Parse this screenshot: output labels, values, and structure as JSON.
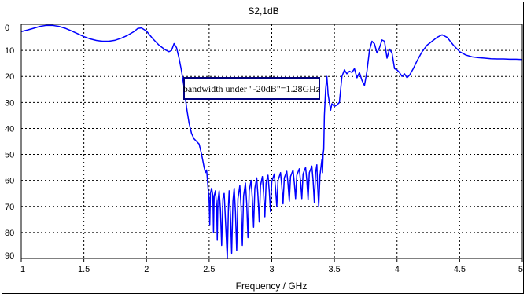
{
  "chart_data": {
    "type": "line",
    "title": "S2,1dB",
    "xlabel": "Frequency / GHz",
    "ylabel": "",
    "xlim": [
      1,
      5
    ],
    "ylim": [
      0,
      90
    ],
    "y_inverted": true,
    "grid": true,
    "grid_style": "dotted",
    "series_color": "#0000ff",
    "x_ticks": [
      "1",
      "1.5",
      "2",
      "2.5",
      "3",
      "3.5",
      "4",
      "4.5",
      "5"
    ],
    "y_ticks": [
      "0",
      "10",
      "20",
      "30",
      "40",
      "50",
      "60",
      "70",
      "80",
      "90"
    ],
    "annotation": {
      "text": "bandwidth under \"-20dB\"=1.28GHz",
      "x": 2.3,
      "y": 25
    },
    "series": [
      {
        "values": [
          [
            1.0,
            2.8
          ],
          [
            1.05,
            2.2
          ],
          [
            1.1,
            1.5
          ],
          [
            1.15,
            0.8
          ],
          [
            1.2,
            0.4
          ],
          [
            1.25,
            0.4
          ],
          [
            1.3,
            0.8
          ],
          [
            1.35,
            1.5
          ],
          [
            1.4,
            2.5
          ],
          [
            1.45,
            3.6
          ],
          [
            1.5,
            4.7
          ],
          [
            1.55,
            5.6
          ],
          [
            1.6,
            6.2
          ],
          [
            1.65,
            6.5
          ],
          [
            1.7,
            6.5
          ],
          [
            1.75,
            6.1
          ],
          [
            1.8,
            5.3
          ],
          [
            1.85,
            4.2
          ],
          [
            1.9,
            2.8
          ],
          [
            1.93,
            1.6
          ],
          [
            1.96,
            1.4
          ],
          [
            2.0,
            2.6
          ],
          [
            2.05,
            5.5
          ],
          [
            2.1,
            8.0
          ],
          [
            2.15,
            9.8
          ],
          [
            2.18,
            10.5
          ],
          [
            2.2,
            10.0
          ],
          [
            2.22,
            7.4
          ],
          [
            2.24,
            9.0
          ],
          [
            2.26,
            13.0
          ],
          [
            2.28,
            18.0
          ],
          [
            2.3,
            24.0
          ],
          [
            2.32,
            32.0
          ],
          [
            2.34,
            38.0
          ],
          [
            2.36,
            42.0
          ],
          [
            2.38,
            44.0
          ],
          [
            2.4,
            45.0
          ],
          [
            2.42,
            46.0
          ],
          [
            2.44,
            50.0
          ],
          [
            2.46,
            55.0
          ],
          [
            2.47,
            57.0
          ],
          [
            2.48,
            56.0
          ],
          [
            2.49,
            62.0
          ],
          [
            2.5,
            68.0
          ],
          [
            2.505,
            77.0
          ],
          [
            2.51,
            65.0
          ],
          [
            2.52,
            63.0
          ],
          [
            2.53,
            66.0
          ],
          [
            2.535,
            80.0
          ],
          [
            2.54,
            66.0
          ],
          [
            2.55,
            64.0
          ],
          [
            2.56,
            70.0
          ],
          [
            2.565,
            83.0
          ],
          [
            2.57,
            68.0
          ],
          [
            2.58,
            64.0
          ],
          [
            2.59,
            71.0
          ],
          [
            2.6,
            85.0
          ],
          [
            2.61,
            67.0
          ],
          [
            2.62,
            65.0
          ],
          [
            2.63,
            75.0
          ],
          [
            2.645,
            90.0
          ],
          [
            2.655,
            69.0
          ],
          [
            2.66,
            64.0
          ],
          [
            2.67,
            73.0
          ],
          [
            2.68,
            88.0
          ],
          [
            2.69,
            68.0
          ],
          [
            2.7,
            63.0
          ],
          [
            2.71,
            72.0
          ],
          [
            2.72,
            87.0
          ],
          [
            2.73,
            67.0
          ],
          [
            2.745,
            62.0
          ],
          [
            2.755,
            70.0
          ],
          [
            2.765,
            85.0
          ],
          [
            2.775,
            66.0
          ],
          [
            2.79,
            61.0
          ],
          [
            2.8,
            69.0
          ],
          [
            2.81,
            82.0
          ],
          [
            2.82,
            64.0
          ],
          [
            2.835,
            60.0
          ],
          [
            2.845,
            67.0
          ],
          [
            2.855,
            78.0
          ],
          [
            2.865,
            63.0
          ],
          [
            2.88,
            59.0
          ],
          [
            2.89,
            66.0
          ],
          [
            2.9,
            76.0
          ],
          [
            2.91,
            62.0
          ],
          [
            2.925,
            58.5
          ],
          [
            2.935,
            65.0
          ],
          [
            2.945,
            74.0
          ],
          [
            2.955,
            61.0
          ],
          [
            2.97,
            58.0
          ],
          [
            2.98,
            64.0
          ],
          [
            2.99,
            72.0
          ],
          [
            3.0,
            60.5
          ],
          [
            3.02,
            57.5
          ],
          [
            3.03,
            63.0
          ],
          [
            3.04,
            70.0
          ],
          [
            3.05,
            60.0
          ],
          [
            3.07,
            57.0
          ],
          [
            3.08,
            62.0
          ],
          [
            3.09,
            69.0
          ],
          [
            3.1,
            59.0
          ],
          [
            3.12,
            56.5
          ],
          [
            3.13,
            61.5
          ],
          [
            3.14,
            68.0
          ],
          [
            3.15,
            58.5
          ],
          [
            3.17,
            56.0
          ],
          [
            3.18,
            61.0
          ],
          [
            3.19,
            67.0
          ],
          [
            3.2,
            58.0
          ],
          [
            3.22,
            55.5
          ],
          [
            3.23,
            60.5
          ],
          [
            3.24,
            67.0
          ],
          [
            3.25,
            57.5
          ],
          [
            3.27,
            55.0
          ],
          [
            3.28,
            60.0
          ],
          [
            3.29,
            67.5
          ],
          [
            3.3,
            57.0
          ],
          [
            3.32,
            54.5
          ],
          [
            3.33,
            60.0
          ],
          [
            3.34,
            68.5
          ],
          [
            3.35,
            57.0
          ],
          [
            3.36,
            54.0
          ],
          [
            3.365,
            61.0
          ],
          [
            3.375,
            70.0
          ],
          [
            3.385,
            58.0
          ],
          [
            3.395,
            54.0
          ],
          [
            3.4,
            52.0
          ],
          [
            3.405,
            57.0
          ],
          [
            3.41,
            50.0
          ],
          [
            3.415,
            48.0
          ],
          [
            3.42,
            35.0
          ],
          [
            3.43,
            25.0
          ],
          [
            3.44,
            20.0
          ],
          [
            3.45,
            27.0
          ],
          [
            3.46,
            30.0
          ],
          [
            3.47,
            33.0
          ],
          [
            3.48,
            30.5
          ],
          [
            3.5,
            31.5
          ],
          [
            3.52,
            31.0
          ],
          [
            3.54,
            30.0
          ],
          [
            3.56,
            20.0
          ],
          [
            3.58,
            17.5
          ],
          [
            3.6,
            19.0
          ],
          [
            3.62,
            18.0
          ],
          [
            3.64,
            18.5
          ],
          [
            3.66,
            17.0
          ],
          [
            3.68,
            20.5
          ],
          [
            3.7,
            18.5
          ],
          [
            3.72,
            21.5
          ],
          [
            3.74,
            23.5
          ],
          [
            3.76,
            18.0
          ],
          [
            3.78,
            10.0
          ],
          [
            3.8,
            6.5
          ],
          [
            3.82,
            7.5
          ],
          [
            3.84,
            11.0
          ],
          [
            3.86,
            9.0
          ],
          [
            3.88,
            6.0
          ],
          [
            3.9,
            6.5
          ],
          [
            3.92,
            13.0
          ],
          [
            3.94,
            9.5
          ],
          [
            3.96,
            11.0
          ],
          [
            3.98,
            17.0
          ],
          [
            4.0,
            17.5
          ],
          [
            4.02,
            18.5
          ],
          [
            4.04,
            20.0
          ],
          [
            4.06,
            19.0
          ],
          [
            4.08,
            20.5
          ],
          [
            4.1,
            19.5
          ],
          [
            4.13,
            17.0
          ],
          [
            4.16,
            14.0
          ],
          [
            4.2,
            10.5
          ],
          [
            4.24,
            8.0
          ],
          [
            4.28,
            6.5
          ],
          [
            4.32,
            5.0
          ],
          [
            4.36,
            4.0
          ],
          [
            4.4,
            5.0
          ],
          [
            4.45,
            8.0
          ],
          [
            4.5,
            10.5
          ],
          [
            4.55,
            11.8
          ],
          [
            4.6,
            12.5
          ],
          [
            4.65,
            12.8
          ],
          [
            4.7,
            13.0
          ],
          [
            4.75,
            13.2
          ],
          [
            4.8,
            13.3
          ],
          [
            4.85,
            13.3
          ],
          [
            4.9,
            13.4
          ],
          [
            4.95,
            13.4
          ],
          [
            5.0,
            13.5
          ]
        ]
      }
    ]
  }
}
